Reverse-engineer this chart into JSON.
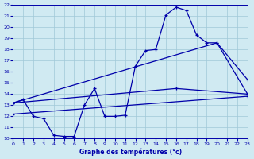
{
  "bg_color": "#d0eaf2",
  "grid_color": "#a0c8d8",
  "line_color": "#0000aa",
  "xlabel": "Graphe des températures (°c)",
  "xlim": [
    0,
    23
  ],
  "ylim": [
    10,
    22
  ],
  "ytick_vals": [
    10,
    11,
    12,
    13,
    14,
    15,
    16,
    17,
    18,
    19,
    20,
    21,
    22
  ],
  "xtick_vals": [
    0,
    1,
    2,
    3,
    4,
    5,
    6,
    7,
    8,
    9,
    10,
    11,
    12,
    13,
    14,
    15,
    16,
    17,
    18,
    19,
    20,
    21,
    22,
    23
  ],
  "curve1_x": [
    0,
    1,
    2,
    3,
    4,
    5,
    6,
    7,
    8,
    9,
    10,
    11,
    12,
    13,
    14,
    15,
    16,
    17,
    18,
    19,
    20,
    23
  ],
  "curve1_y": [
    13.2,
    13.5,
    12.0,
    11.8,
    10.3,
    10.2,
    10.2,
    13.0,
    14.5,
    12.0,
    12.0,
    12.1,
    16.5,
    17.9,
    18.0,
    21.1,
    21.8,
    21.5,
    19.3,
    18.6,
    18.6,
    15.3
  ],
  "curve2_x": [
    0,
    20,
    23
  ],
  "curve2_y": [
    13.2,
    18.6,
    14.0
  ],
  "curve3_x": [
    0,
    16,
    23
  ],
  "curve3_y": [
    13.2,
    14.5,
    14.0
  ],
  "curve4_x": [
    0,
    23
  ],
  "curve4_y": [
    12.2,
    13.8
  ]
}
